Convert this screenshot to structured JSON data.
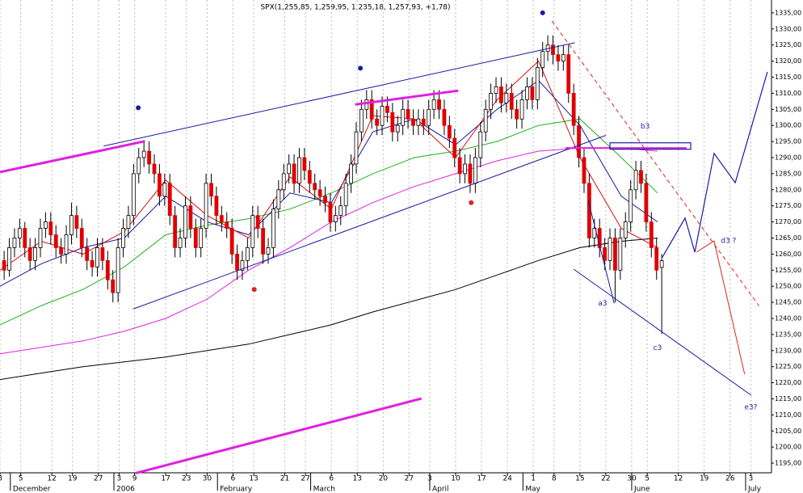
{
  "chart_data": {
    "type": "candlestick",
    "title": "SPX(1,255,85, 1,259,95, 1,235,18, 1,257,93, +1,78)",
    "up_color": "#ffffff",
    "down_color": "#e00000",
    "xlim": [
      0,
      149
    ],
    "ylim": [
      1192,
      1339
    ],
    "xticks": [
      {
        "value": 0,
        "label": "8"
      },
      {
        "value": 4,
        "label": "5"
      },
      {
        "value": 10,
        "label": "12"
      },
      {
        "value": 14,
        "label": "19"
      },
      {
        "value": 19,
        "label": "27"
      },
      {
        "value": 23,
        "label": "3"
      },
      {
        "value": 26,
        "label": "9"
      },
      {
        "value": 32,
        "label": "17"
      },
      {
        "value": 36,
        "label": "23"
      },
      {
        "value": 40,
        "label": "30"
      },
      {
        "value": 45,
        "label": "6"
      },
      {
        "value": 49,
        "label": "13"
      },
      {
        "value": 55,
        "label": "21"
      },
      {
        "value": 59,
        "label": "27"
      },
      {
        "value": 64,
        "label": "6"
      },
      {
        "value": 69,
        "label": "13"
      },
      {
        "value": 74,
        "label": "20"
      },
      {
        "value": 79,
        "label": "27"
      },
      {
        "value": 83,
        "label": "3"
      },
      {
        "value": 88,
        "label": "10"
      },
      {
        "value": 93,
        "label": "17"
      },
      {
        "value": 98,
        "label": "24"
      },
      {
        "value": 103,
        "label": "1"
      },
      {
        "value": 107,
        "label": "8"
      },
      {
        "value": 112,
        "label": "15"
      },
      {
        "value": 117,
        "label": "22"
      },
      {
        "value": 122,
        "label": "30"
      },
      {
        "value": 125,
        "label": "5"
      },
      {
        "value": 131,
        "label": "12"
      },
      {
        "value": 136,
        "label": "19"
      },
      {
        "value": 141,
        "label": "26"
      },
      {
        "value": 145,
        "label": "3"
      }
    ],
    "month_labels": [
      {
        "value": 2,
        "label": "December"
      },
      {
        "value": 22,
        "label": "2006"
      },
      {
        "value": 42,
        "label": "February"
      },
      {
        "value": 60,
        "label": "March"
      },
      {
        "value": 83,
        "label": "April"
      },
      {
        "value": 101,
        "label": "May"
      },
      {
        "value": 122,
        "label": "June"
      },
      {
        "value": 144,
        "label": "July"
      }
    ],
    "yticks": [
      {
        "value": 1195,
        "label": "1195,00"
      },
      {
        "value": 1200,
        "label": "1200,00"
      },
      {
        "value": 1205,
        "label": "1205,00"
      },
      {
        "value": 1210,
        "label": "1210,00"
      },
      {
        "value": 1215,
        "label": "1215,00"
      },
      {
        "value": 1220,
        "label": "1220,00"
      },
      {
        "value": 1225,
        "label": "1225,00"
      },
      {
        "value": 1230,
        "label": "1230,00"
      },
      {
        "value": 1235,
        "label": "1235,00"
      },
      {
        "value": 1240,
        "label": "1240,00"
      },
      {
        "value": 1245,
        "label": "1245,00"
      },
      {
        "value": 1250,
        "label": "1250,00"
      },
      {
        "value": 1255,
        "label": "1255,00"
      },
      {
        "value": 1260,
        "label": "1260,00"
      },
      {
        "value": 1265,
        "label": "1265,00"
      },
      {
        "value": 1270,
        "label": "1270,00"
      },
      {
        "value": 1275,
        "label": "1275,00"
      },
      {
        "value": 1280,
        "label": "1280,00"
      },
      {
        "value": 1285,
        "label": "1285,00"
      },
      {
        "value": 1290,
        "label": "1290,00"
      },
      {
        "value": 1295,
        "label": "1295,00"
      },
      {
        "value": 1300,
        "label": "1300,00"
      },
      {
        "value": 1305,
        "label": "1305,00"
      },
      {
        "value": 1310,
        "label": "1310,00"
      },
      {
        "value": 1315,
        "label": "1315,00"
      },
      {
        "value": 1320,
        "label": "1320,00"
      },
      {
        "value": 1325,
        "label": "1325,00"
      },
      {
        "value": 1330,
        "label": "1330,00"
      },
      {
        "value": 1335,
        "label": "1335,00"
      }
    ],
    "candles": [
      [
        1258,
        1261,
        1252,
        1255
      ],
      [
        1255,
        1265,
        1253,
        1262
      ],
      [
        1262,
        1268,
        1259,
        1265
      ],
      [
        1265,
        1271,
        1262,
        1268
      ],
      [
        1268,
        1270,
        1259,
        1262
      ],
      [
        1262,
        1265,
        1255,
        1258
      ],
      [
        1258,
        1265,
        1255,
        1262
      ],
      [
        1262,
        1271,
        1259,
        1268
      ],
      [
        1268,
        1273,
        1265,
        1270
      ],
      [
        1270,
        1273,
        1263,
        1266
      ],
      [
        1266,
        1269,
        1259,
        1262
      ],
      [
        1262,
        1265,
        1257,
        1260
      ],
      [
        1260,
        1269,
        1257,
        1266
      ],
      [
        1266,
        1276,
        1263,
        1272
      ],
      [
        1272,
        1275,
        1265,
        1268
      ],
      [
        1268,
        1271,
        1259,
        1262
      ],
      [
        1262,
        1265,
        1255,
        1258
      ],
      [
        1258,
        1261,
        1253,
        1256
      ],
      [
        1256,
        1265,
        1253,
        1262
      ],
      [
        1262,
        1265,
        1255,
        1258
      ],
      [
        1258,
        1261,
        1249,
        1252
      ],
      [
        1252,
        1255,
        1245,
        1248
      ],
      [
        1248,
        1265,
        1245,
        1262
      ],
      [
        1262,
        1271,
        1259,
        1268
      ],
      [
        1268,
        1275,
        1265,
        1272
      ],
      [
        1272,
        1288,
        1269,
        1285
      ],
      [
        1285,
        1293,
        1282,
        1290
      ],
      [
        1290,
        1295,
        1287,
        1292
      ],
      [
        1292,
        1295,
        1285,
        1288
      ],
      [
        1288,
        1291,
        1282,
        1285
      ],
      [
        1285,
        1288,
        1275,
        1278
      ],
      [
        1278,
        1285,
        1275,
        1282
      ],
      [
        1282,
        1285,
        1269,
        1272
      ],
      [
        1272,
        1275,
        1259,
        1262
      ],
      [
        1262,
        1268,
        1259,
        1265
      ],
      [
        1265,
        1278,
        1262,
        1275
      ],
      [
        1275,
        1278,
        1265,
        1268
      ],
      [
        1268,
        1271,
        1259,
        1262
      ],
      [
        1262,
        1271,
        1259,
        1268
      ],
      [
        1268,
        1285,
        1265,
        1282
      ],
      [
        1282,
        1285,
        1275,
        1278
      ],
      [
        1278,
        1281,
        1269,
        1272
      ],
      [
        1272,
        1275,
        1267,
        1270
      ],
      [
        1270,
        1273,
        1265,
        1268
      ],
      [
        1268,
        1271,
        1257,
        1260
      ],
      [
        1260,
        1263,
        1252,
        1255
      ],
      [
        1255,
        1261,
        1252,
        1258
      ],
      [
        1258,
        1265,
        1255,
        1262
      ],
      [
        1262,
        1275,
        1259,
        1272
      ],
      [
        1272,
        1275,
        1265,
        1268
      ],
      [
        1268,
        1271,
        1257,
        1260
      ],
      [
        1260,
        1265,
        1257,
        1262
      ],
      [
        1262,
        1277,
        1259,
        1274
      ],
      [
        1274,
        1283,
        1271,
        1280
      ],
      [
        1280,
        1288,
        1277,
        1285
      ],
      [
        1285,
        1291,
        1282,
        1288
      ],
      [
        1288,
        1291,
        1279,
        1282
      ],
      [
        1282,
        1293,
        1279,
        1290
      ],
      [
        1290,
        1293,
        1283,
        1286
      ],
      [
        1286,
        1289,
        1279,
        1282
      ],
      [
        1282,
        1285,
        1277,
        1280
      ],
      [
        1280,
        1283,
        1275,
        1278
      ],
      [
        1278,
        1281,
        1273,
        1276
      ],
      [
        1276,
        1279,
        1267,
        1270
      ],
      [
        1270,
        1275,
        1267,
        1272
      ],
      [
        1272,
        1278,
        1269,
        1275
      ],
      [
        1275,
        1285,
        1272,
        1282
      ],
      [
        1282,
        1291,
        1279,
        1288
      ],
      [
        1288,
        1301,
        1285,
        1298
      ],
      [
        1298,
        1308,
        1295,
        1305
      ],
      [
        1305,
        1311,
        1302,
        1308
      ],
      [
        1308,
        1311,
        1299,
        1302
      ],
      [
        1302,
        1305,
        1297,
        1300
      ],
      [
        1300,
        1309,
        1297,
        1306
      ],
      [
        1306,
        1309,
        1301,
        1304
      ],
      [
        1304,
        1307,
        1295,
        1298
      ],
      [
        1298,
        1303,
        1295,
        1300
      ],
      [
        1300,
        1308,
        1297,
        1305
      ],
      [
        1305,
        1308,
        1299,
        1302
      ],
      [
        1302,
        1305,
        1297,
        1300
      ],
      [
        1300,
        1305,
        1297,
        1302
      ],
      [
        1302,
        1305,
        1297,
        1300
      ],
      [
        1300,
        1308,
        1297,
        1305
      ],
      [
        1305,
        1311,
        1302,
        1308
      ],
      [
        1308,
        1311,
        1302,
        1305
      ],
      [
        1305,
        1308,
        1297,
        1300
      ],
      [
        1300,
        1303,
        1293,
        1296
      ],
      [
        1296,
        1299,
        1287,
        1290
      ],
      [
        1290,
        1293,
        1282,
        1285
      ],
      [
        1285,
        1291,
        1282,
        1288
      ],
      [
        1288,
        1291,
        1279,
        1282
      ],
      [
        1282,
        1293,
        1279,
        1290
      ],
      [
        1290,
        1301,
        1287,
        1298
      ],
      [
        1298,
        1308,
        1295,
        1305
      ],
      [
        1305,
        1313,
        1302,
        1310
      ],
      [
        1310,
        1315,
        1307,
        1312
      ],
      [
        1312,
        1315,
        1304,
        1307
      ],
      [
        1307,
        1313,
        1304,
        1310
      ],
      [
        1310,
        1313,
        1302,
        1305
      ],
      [
        1305,
        1308,
        1299,
        1302
      ],
      [
        1302,
        1311,
        1299,
        1308
      ],
      [
        1308,
        1315,
        1305,
        1312
      ],
      [
        1312,
        1315,
        1305,
        1308
      ],
      [
        1308,
        1321,
        1305,
        1318
      ],
      [
        1318,
        1326,
        1315,
        1323
      ],
      [
        1323,
        1328,
        1320,
        1325
      ],
      [
        1325,
        1328,
        1319,
        1322
      ],
      [
        1322,
        1325,
        1317,
        1320
      ],
      [
        1320,
        1325,
        1317,
        1322
      ],
      [
        1322,
        1325,
        1307,
        1310
      ],
      [
        1310,
        1313,
        1297,
        1300
      ],
      [
        1300,
        1303,
        1287,
        1290
      ],
      [
        1290,
        1293,
        1279,
        1282
      ],
      [
        1282,
        1285,
        1262,
        1265
      ],
      [
        1265,
        1271,
        1262,
        1268
      ],
      [
        1268,
        1271,
        1259,
        1262
      ],
      [
        1262,
        1265,
        1255,
        1258
      ],
      [
        1258,
        1268,
        1255,
        1265
      ],
      [
        1265,
        1268,
        1245,
        1255
      ],
      [
        1255,
        1268,
        1252,
        1265
      ],
      [
        1265,
        1273,
        1262,
        1270
      ],
      [
        1270,
        1283,
        1267,
        1280
      ],
      [
        1280,
        1289,
        1277,
        1286
      ],
      [
        1286,
        1289,
        1279,
        1282
      ],
      [
        1282,
        1285,
        1267,
        1270
      ],
      [
        1270,
        1273,
        1259,
        1262
      ],
      [
        1262,
        1265,
        1252,
        1255
      ],
      [
        1255.85,
        1259.95,
        1235.18,
        1257.93
      ]
    ],
    "moving_averages": {
      "x": [
        0,
        8,
        16,
        24,
        32,
        40,
        48,
        56,
        64,
        72,
        80,
        88,
        96,
        104,
        112,
        120,
        127
      ],
      "series": [
        {
          "color": "#000000",
          "values": [
            1221,
            1223,
            1225,
            1226.5,
            1228,
            1230,
            1232,
            1235,
            1238,
            1242,
            1245.5,
            1249,
            1253.5,
            1258,
            1262,
            1264,
            1265
          ]
        },
        {
          "color": "#e020e0",
          "values": [
            1229,
            1231,
            1233,
            1236,
            1240,
            1246,
            1255,
            1262,
            1270,
            1276,
            1281,
            1285,
            1289,
            1292,
            1293,
            1293,
            1292
          ]
        },
        {
          "color": "#20b020",
          "values": [
            1238,
            1244,
            1249,
            1256,
            1266,
            1269,
            1271,
            1274,
            1279,
            1285,
            1290,
            1292,
            1295,
            1300,
            1302,
            1290,
            1279
          ]
        },
        {
          "color": "#1a1aa0",
          "values": [
            1250,
            1257,
            1262,
            1265,
            1278,
            1270,
            1266,
            1279,
            1276,
            1298,
            1302,
            1294,
            1305,
            1314,
            1300,
            1278,
            1270
          ]
        },
        {
          "color": "#d01010",
          "values": [
            1255,
            1264,
            1260,
            1267,
            1283,
            1272,
            1265,
            1284,
            1274,
            1303,
            1302,
            1290,
            1308,
            1320,
            1290,
            1268,
            1262
          ]
        }
      ]
    },
    "lines": [
      {
        "color": "#1a1aa0",
        "width": 1,
        "dashed": false,
        "x": [
          20,
          111
        ],
        "y": [
          1293.6,
          1325.7
        ]
      },
      {
        "color": "#1a1aa0",
        "width": 1,
        "dashed": false,
        "x": [
          25.7,
          117
        ],
        "y": [
          1242.9,
          1296.9
        ]
      },
      {
        "color": "#e020e0",
        "width": 3,
        "dashed": false,
        "x": [
          0,
          28
        ],
        "y": [
          1285.5,
          1295.1
        ]
      },
      {
        "color": "#e020e0",
        "width": 3,
        "dashed": false,
        "x": [
          68.6,
          88.5
        ],
        "y": [
          1306.5,
          1310.8
        ]
      },
      {
        "color": "#e020e0",
        "width": 3,
        "dashed": false,
        "x": [
          26.2,
          81.4
        ],
        "y": [
          1191.9,
          1215.1
        ]
      },
      {
        "color": "#e020e0",
        "width": 2,
        "dashed": false,
        "x": [
          109.2,
          132.6
        ],
        "y": [
          1293,
          1293
        ]
      },
      {
        "color": "#e02020",
        "width": 1,
        "dashed": true,
        "x": [
          106.6,
          146.6
        ],
        "y": [
          1332.5,
          1243.9
        ]
      },
      {
        "color": "#1a1aa0",
        "width": 1,
        "dashed": false,
        "x": [
          110.8,
          145.1
        ],
        "y": [
          1255.3,
          1216.1
        ]
      },
      {
        "color": "#1a1aa0",
        "width": 1,
        "dashed": false,
        "x": [
          113.6,
          118.6
        ],
        "y": [
          1276.7,
          1244.7
        ]
      },
      {
        "color": "#1a1aa0",
        "width": 1.2,
        "dashed": false,
        "x": [
          127.9,
          132.3,
          134.2,
          137.9,
          142,
          148.2
        ],
        "y": [
          1259,
          1271.2,
          1260.6,
          1291.3,
          1282.2,
          1316.6
        ]
      },
      {
        "color": "#e02020",
        "width": 1,
        "dashed": false,
        "x": [
          134.5,
          137.9,
          143.8
        ],
        "y": [
          1260.6,
          1264.1,
          1222.7
        ]
      }
    ],
    "boxes": [
      {
        "color": "#1a1aa0",
        "x": [
          117.8,
          133.4
        ],
        "y": [
          1292.6,
          1294.6
        ]
      }
    ],
    "dots": [
      {
        "color": "#1a1aa0",
        "x": 26.7,
        "y": 1305.5
      },
      {
        "color": "#1a1aa0",
        "x": 69.6,
        "y": 1317.8
      },
      {
        "color": "#1a1aa0",
        "x": 104.8,
        "y": 1335
      },
      {
        "color": "#e02020",
        "x": 49.1,
        "y": 1249
      },
      {
        "color": "#e02020",
        "x": 91,
        "y": 1276
      }
    ],
    "annotations": [
      {
        "text": "b3",
        "x": 124.6,
        "y": 1299.7
      },
      {
        "text": "a3",
        "x": 116.4,
        "y": 1244.7
      },
      {
        "text": "c3",
        "x": 127,
        "y": 1230.8
      },
      {
        "text": "d3 ?",
        "x": 140.7,
        "y": 1264.1
      },
      {
        "text": "e3?",
        "x": 145,
        "y": 1212.4
      }
    ],
    "annotation_color": "#1a1aa0"
  }
}
